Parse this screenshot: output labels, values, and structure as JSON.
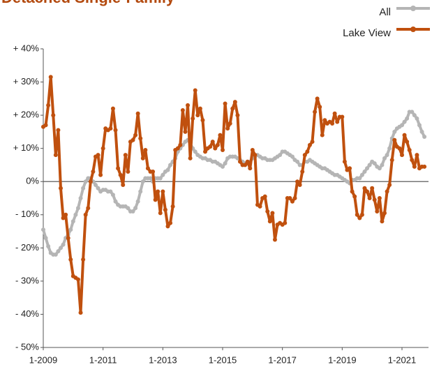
{
  "chart_data": {
    "type": "line",
    "title": "Detached Single-Family",
    "x": [
      "1-2009",
      "2-2009",
      "3-2009",
      "4-2009",
      "5-2009",
      "6-2009",
      "7-2009",
      "8-2009",
      "9-2009",
      "10-2009",
      "11-2009",
      "12-2009",
      "1-2010",
      "2-2010",
      "3-2010",
      "4-2010",
      "5-2010",
      "6-2010",
      "7-2010",
      "8-2010",
      "9-2010",
      "10-2010",
      "11-2010",
      "12-2010",
      "1-2011",
      "2-2011",
      "3-2011",
      "4-2011",
      "5-2011",
      "6-2011",
      "7-2011",
      "8-2011",
      "9-2011",
      "10-2011",
      "11-2011",
      "12-2011",
      "1-2012",
      "2-2012",
      "3-2012",
      "4-2012",
      "5-2012",
      "6-2012",
      "7-2012",
      "8-2012",
      "9-2012",
      "10-2012",
      "11-2012",
      "12-2012",
      "1-2013",
      "2-2013",
      "3-2013",
      "4-2013",
      "5-2013",
      "6-2013",
      "7-2013",
      "8-2013",
      "9-2013",
      "10-2013",
      "11-2013",
      "12-2013",
      "1-2014",
      "2-2014",
      "3-2014",
      "4-2014",
      "5-2014",
      "6-2014",
      "7-2014",
      "8-2014",
      "9-2014",
      "10-2014",
      "11-2014",
      "12-2014",
      "1-2015",
      "2-2015",
      "3-2015",
      "4-2015",
      "5-2015",
      "6-2015",
      "7-2015",
      "8-2015",
      "9-2015",
      "10-2015",
      "11-2015",
      "12-2015",
      "1-2016",
      "2-2016",
      "3-2016",
      "4-2016",
      "5-2016",
      "6-2016",
      "7-2016",
      "8-2016",
      "9-2016",
      "10-2016",
      "11-2016",
      "12-2016",
      "1-2017",
      "2-2017",
      "3-2017",
      "4-2017",
      "5-2017",
      "6-2017",
      "7-2017",
      "8-2017",
      "9-2017",
      "10-2017",
      "11-2017",
      "12-2017",
      "1-2018",
      "2-2018",
      "3-2018",
      "4-2018",
      "5-2018",
      "6-2018",
      "7-2018",
      "8-2018",
      "9-2018",
      "10-2018",
      "11-2018",
      "12-2018",
      "1-2019",
      "2-2019",
      "3-2019",
      "4-2019",
      "5-2019",
      "6-2019",
      "7-2019",
      "8-2019",
      "9-2019",
      "10-2019",
      "11-2019",
      "12-2019",
      "1-2020",
      "2-2020",
      "3-2020",
      "4-2020",
      "5-2020",
      "6-2020",
      "7-2020",
      "8-2020",
      "9-2020",
      "10-2020",
      "11-2020",
      "12-2020",
      "1-2021",
      "2-2021",
      "3-2021",
      "4-2021",
      "5-2021",
      "6-2021",
      "7-2021",
      "8-2021",
      "9-2021",
      "10-2021"
    ],
    "series": [
      {
        "name": "All",
        "color": "#b5b5b5",
        "values": [
          -14.5,
          -17,
          -19.5,
          -21.5,
          -22,
          -22,
          -21,
          -20,
          -19,
          -17,
          -16,
          -14.5,
          -12,
          -10,
          -8,
          -5,
          -2,
          0,
          1,
          1,
          0,
          -1,
          -2,
          -3,
          -2.5,
          -2.5,
          -3,
          -3,
          -4,
          -6,
          -7,
          -7.5,
          -7.5,
          -7.5,
          -8,
          -9,
          -9,
          -8,
          -6,
          -3,
          0,
          1,
          1,
          1,
          0,
          1,
          1,
          1,
          2,
          3,
          3.5,
          5,
          6,
          7,
          9,
          10,
          11,
          12,
          12.5,
          11.5,
          10,
          9,
          8,
          7.5,
          7,
          7,
          6.5,
          6.5,
          6,
          6,
          5.5,
          5,
          4.5,
          5.5,
          7,
          7.5,
          7.5,
          7.5,
          7,
          6.5,
          6,
          5.5,
          5.5,
          6,
          7,
          7.5,
          8,
          7.5,
          7,
          7,
          6.5,
          6.5,
          6.5,
          7,
          7.5,
          8,
          9,
          9,
          8.5,
          8,
          7.5,
          6.5,
          6,
          5,
          5,
          6,
          6,
          6.5,
          6,
          5.5,
          5,
          4.5,
          4,
          4,
          3.5,
          3,
          2.5,
          2,
          2,
          1.5,
          1,
          0.5,
          0,
          -0.5,
          0.5,
          0.5,
          1,
          1,
          2,
          3,
          4,
          5,
          6,
          5.5,
          4.5,
          4,
          5,
          7,
          8,
          10,
          13,
          15,
          16,
          16.5,
          17,
          18,
          19,
          21,
          21,
          20,
          19,
          17,
          15,
          13.5
        ]
      },
      {
        "name": "Lake View",
        "color": "#c0500e",
        "values": [
          16.5,
          17,
          23,
          31.5,
          20,
          8,
          15.5,
          -2,
          -11,
          -10,
          -17,
          -23.5,
          -28.5,
          -29,
          -29.5,
          -39.5,
          -23.5,
          -10,
          -8,
          0,
          3,
          7.5,
          8,
          2,
          10,
          16,
          15.5,
          16,
          22,
          15.5,
          4,
          2,
          -1,
          8,
          3,
          12,
          12.5,
          14,
          20.5,
          13,
          7,
          9.5,
          4,
          3,
          3,
          -5.5,
          -3,
          -9.5,
          -3,
          -8.5,
          -13.5,
          -12.5,
          -7.5,
          9.5,
          10,
          11,
          21.5,
          15,
          23,
          7,
          19,
          27.5,
          20,
          22,
          18.5,
          9,
          10,
          10.5,
          12,
          10,
          11,
          14,
          9.5,
          23.5,
          16,
          17.5,
          22,
          24,
          20,
          6,
          5,
          5,
          6,
          4,
          9.5,
          8,
          -7,
          -7.5,
          -5,
          -4.5,
          -9,
          -12,
          -9.5,
          -17.5,
          -13,
          -12.5,
          -13,
          -12.5,
          -5,
          -5,
          -6,
          -5,
          0,
          -1,
          3,
          8,
          9,
          11,
          12,
          21,
          25,
          22.5,
          14,
          18.5,
          17.5,
          18,
          17.5,
          20.5,
          18,
          19.5,
          19.5,
          6,
          3.5,
          4,
          -3,
          -4.5,
          -10,
          -11,
          -10,
          -2,
          -3,
          -5,
          -2,
          -5.5,
          -9,
          -5,
          -12,
          -9.5,
          -3,
          -1,
          6.5,
          12.5,
          10.5,
          10,
          8,
          14,
          12,
          9.5,
          6.5,
          4.5,
          8,
          4,
          4.5,
          4.5
        ]
      }
    ],
    "xticks": [
      "1-2009",
      "1-2011",
      "1-2013",
      "1-2015",
      "1-2017",
      "1-2019",
      "1-2021"
    ],
    "ylim": [
      -50,
      40
    ],
    "yticks": [
      {
        "value": -50,
        "label": "- 50%"
      },
      {
        "value": -40,
        "label": "- 40%"
      },
      {
        "value": -30,
        "label": "- 30%"
      },
      {
        "value": -20,
        "label": "- 20%"
      },
      {
        "value": -10,
        "label": "- 10%"
      },
      {
        "value": 0,
        "label": "0%"
      },
      {
        "value": 10,
        "label": "+ 10%"
      },
      {
        "value": 20,
        "label": "+ 20%"
      },
      {
        "value": 30,
        "label": "+ 30%"
      },
      {
        "value": 40,
        "label": "+ 40%"
      }
    ],
    "legend": "top-right"
  }
}
